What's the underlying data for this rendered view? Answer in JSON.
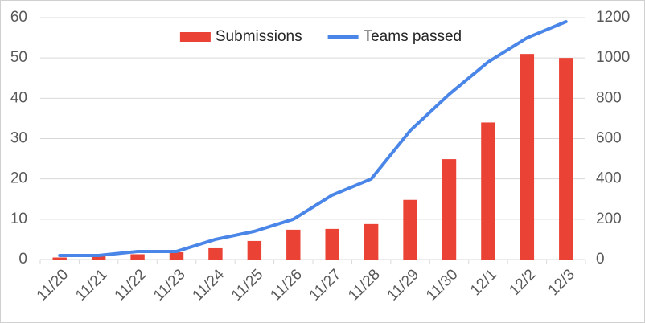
{
  "chart_data": {
    "type": "bar-line",
    "categories": [
      "11/20",
      "11/21",
      "11/22",
      "11/23",
      "11/24",
      "11/25",
      "11/26",
      "11/27",
      "11/28",
      "11/29",
      "11/30",
      "12/1",
      "12/2",
      "12/3"
    ],
    "series": [
      {
        "name": "Submissions",
        "type": "bar",
        "color": "#ea4335",
        "axis": "y",
        "values": [
          0.5,
          1,
          1.3,
          1.8,
          2.8,
          4.6,
          7.4,
          7.6,
          8.8,
          14.8,
          24.9,
          34,
          51,
          50
        ]
      },
      {
        "name": "Teams passed",
        "type": "line",
        "color": "#4a86e8",
        "axis": "y2",
        "values": [
          20,
          20,
          40,
          40,
          100,
          140,
          200,
          320,
          400,
          640,
          820,
          980,
          1100,
          1180
        ]
      }
    ],
    "ylim": [
      0,
      60
    ],
    "yticks": [
      0,
      10,
      20,
      30,
      40,
      50,
      60
    ],
    "y2lim": [
      0,
      1200
    ],
    "y2ticks": [
      0,
      200,
      400,
      600,
      800,
      1000,
      1200
    ],
    "grid": true,
    "legend": "upper center"
  }
}
